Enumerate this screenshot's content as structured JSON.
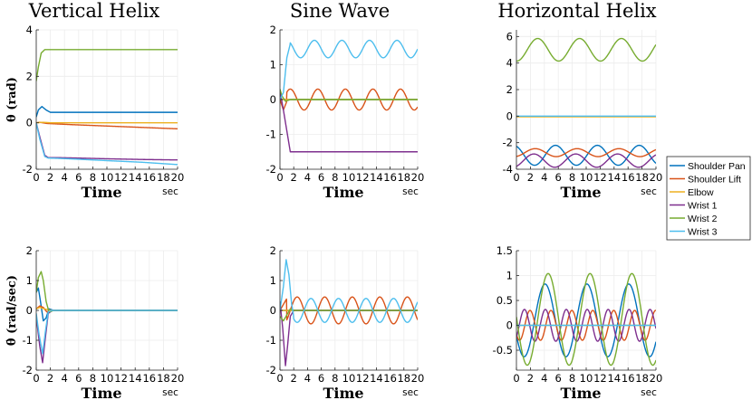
{
  "chart_data": {
    "type": "line",
    "legend": {
      "placement": "right",
      "entries": [
        "Shoulder Pan",
        "Shoulder Lift",
        "Elbow",
        "Wrist 1",
        "Wrist 2",
        "Wrist 3"
      ]
    },
    "colors": [
      "#0072BD",
      "#D95319",
      "#EDB120",
      "#7E2F8E",
      "#77AC30",
      "#4DBEEE"
    ],
    "xlabel": "Time",
    "xunit": "sec",
    "xlim": [
      0,
      20
    ],
    "xticks": [
      "0",
      "2",
      "4",
      "6",
      "8",
      "10",
      "12",
      "14",
      "16",
      "18",
      "20"
    ],
    "panels": [
      {
        "id": "vh-theta",
        "title": "Vertical Helix",
        "ylabel": "θ (rad)",
        "ylim": [
          -2,
          4
        ],
        "yticks": [
          "4",
          "2",
          "0",
          "-2"
        ],
        "ytick_vals": [
          4,
          2,
          0,
          -2
        ],
        "series": [
          {
            "name": "Shoulder Pan",
            "x": [
              0,
              0.3,
              0.8,
              1.4,
              2,
              4,
              10,
              20
            ],
            "y": [
              0.25,
              0.55,
              0.7,
              0.55,
              0.45,
              0.45,
              0.45,
              0.45
            ]
          },
          {
            "name": "Shoulder Lift",
            "x": [
              0,
              0.5,
              1.5,
              5,
              10,
              15,
              20
            ],
            "y": [
              0.0,
              0.02,
              -0.03,
              -0.08,
              -0.14,
              -0.2,
              -0.26
            ]
          },
          {
            "name": "Elbow",
            "x": [
              0,
              1,
              2,
              10,
              20
            ],
            "y": [
              0.0,
              0.02,
              0.0,
              0.0,
              0.0
            ]
          },
          {
            "name": "Wrist 1",
            "x": [
              0,
              0.5,
              1.2,
              1.7,
              3,
              6,
              10,
              15,
              20
            ],
            "y": [
              0.0,
              -0.6,
              -1.4,
              -1.5,
              -1.5,
              -1.52,
              -1.55,
              -1.58,
              -1.6
            ]
          },
          {
            "name": "Wrist 2",
            "x": [
              0,
              0.3,
              0.7,
              1.2,
              2,
              4,
              10,
              20
            ],
            "y": [
              1.8,
              2.4,
              3.0,
              3.15,
              3.15,
              3.15,
              3.15,
              3.15
            ]
          },
          {
            "name": "Wrist 3",
            "x": [
              0,
              0.5,
              1.2,
              1.7,
              3,
              6,
              10,
              15,
              20
            ],
            "y": [
              0.0,
              -0.7,
              -1.45,
              -1.52,
              -1.53,
              -1.57,
              -1.63,
              -1.7,
              -1.8
            ]
          }
        ]
      },
      {
        "id": "sw-theta",
        "title": "Sine Wave",
        "ylabel": "",
        "ylim": [
          -2,
          2
        ],
        "yticks": [
          "2",
          "1",
          "0",
          "-1",
          "-2"
        ],
        "ytick_vals": [
          2,
          1,
          0,
          -1,
          -2
        ],
        "series": [
          {
            "name": "Shoulder Pan",
            "x": [
              0,
              20
            ],
            "y": [
              0.0,
              0.0
            ]
          },
          {
            "name": "Shoulder Lift",
            "wave": {
              "base": 0.0,
              "amp": 0.3,
              "period": 4,
              "phase": 0.5,
              "start": 1.0
            },
            "x": [
              0,
              0.5,
              1.0
            ],
            "y": [
              0.0,
              -0.3,
              -0.05
            ]
          },
          {
            "name": "Elbow",
            "x": [
              0,
              20
            ],
            "y": [
              0.0,
              0.0
            ]
          },
          {
            "name": "Wrist 1",
            "x": [
              0,
              0.5,
              1.0,
              1.5,
              3,
              10,
              20
            ],
            "y": [
              0.25,
              -0.3,
              -0.9,
              -1.5,
              -1.5,
              -1.5,
              -1.5
            ]
          },
          {
            "name": "Wrist 2",
            "x": [
              0,
              0.3,
              0.8,
              1.5,
              20
            ],
            "y": [
              0.3,
              0.1,
              -0.05,
              0.0,
              0.0
            ]
          },
          {
            "name": "Wrist 3",
            "wave": {
              "base": 1.45,
              "amp": 0.25,
              "period": 4,
              "phase": 0.0,
              "start": 1.5
            },
            "x": [
              0,
              0.5,
              1.0,
              1.5
            ],
            "y": [
              0.0,
              0.2,
              1.2,
              1.6
            ]
          }
        ]
      },
      {
        "id": "hh-theta",
        "title": "Horizontal Helix",
        "ylabel": "",
        "ylim": [
          -4,
          6.5
        ],
        "yticks": [
          "6",
          "4",
          "2",
          "0",
          "-2",
          "-4"
        ],
        "ytick_vals": [
          6,
          4,
          2,
          0,
          -2,
          -4
        ],
        "series": [
          {
            "name": "Shoulder Pan",
            "wave": {
              "base": -2.95,
              "amp": 0.75,
              "period": 6,
              "phase": 4.1,
              "start": 0
            }
          },
          {
            "name": "Shoulder Lift",
            "wave": {
              "base": -2.75,
              "amp": 0.3,
              "period": 6,
              "phase": 1.2,
              "start": 0
            }
          },
          {
            "name": "Elbow",
            "x": [
              0,
              20
            ],
            "y": [
              -0.05,
              -0.05
            ]
          },
          {
            "name": "Wrist 1",
            "wave": {
              "base": -3.35,
              "amp": 0.5,
              "period": 6,
              "phase": 1.0,
              "start": 0
            }
          },
          {
            "name": "Wrist 2",
            "wave": {
              "base": 5.0,
              "amp": 0.85,
              "period": 6,
              "phase": 1.55,
              "start": 0
            }
          },
          {
            "name": "Wrist 3",
            "x": [
              0,
              20
            ],
            "y": [
              0.0,
              0.0
            ]
          }
        ]
      },
      {
        "id": "vh-dtheta",
        "title": "",
        "ylabel": "θ̇ (rad/sec)",
        "ylim": [
          -2,
          2
        ],
        "yticks": [
          "2",
          "1",
          "0",
          "-1",
          "-2"
        ],
        "ytick_vals": [
          2,
          1,
          0,
          -1,
          -2
        ],
        "series": [
          {
            "name": "Shoulder Pan",
            "x": [
              0,
              0.3,
              0.6,
              1.0,
              1.4,
              1.8,
              2.5,
              3,
              20
            ],
            "y": [
              0.6,
              0.75,
              0.3,
              -0.35,
              -0.25,
              0.05,
              0.0,
              0.0,
              0.0
            ]
          },
          {
            "name": "Shoulder Lift",
            "x": [
              0,
              0.5,
              1.0,
              1.5,
              2.5,
              20
            ],
            "y": [
              0.05,
              0.15,
              0.1,
              -0.05,
              0.0,
              0.0
            ]
          },
          {
            "name": "Elbow",
            "x": [
              0,
              0.5,
              1.2,
              2,
              20
            ],
            "y": [
              0.05,
              0.1,
              0.05,
              0.0,
              0.0
            ]
          },
          {
            "name": "Wrist 1",
            "x": [
              0,
              0.5,
              0.9,
              1.3,
              1.7,
              2.3,
              3,
              20
            ],
            "y": [
              -0.2,
              -1.2,
              -1.75,
              -0.9,
              -0.1,
              0.0,
              0.0,
              0.0
            ]
          },
          {
            "name": "Wrist 2",
            "x": [
              0,
              0.3,
              0.7,
              1.0,
              1.4,
              1.8,
              2.5,
              3,
              20
            ],
            "y": [
              0.6,
              1.1,
              1.3,
              1.0,
              0.3,
              -0.05,
              0.0,
              0.0,
              0.0
            ]
          },
          {
            "name": "Wrist 3",
            "x": [
              0,
              0.4,
              0.9,
              1.3,
              1.7,
              2.2,
              3,
              20
            ],
            "y": [
              -0.1,
              -0.8,
              -1.45,
              -0.7,
              -0.05,
              0.0,
              0.0,
              0.0
            ]
          }
        ]
      },
      {
        "id": "sw-dtheta",
        "title": "",
        "ylabel": "",
        "ylim": [
          -2,
          2
        ],
        "yticks": [
          "2",
          "1",
          "0",
          "-1",
          "-2"
        ],
        "ytick_vals": [
          2,
          1,
          0,
          -1,
          -2
        ],
        "series": [
          {
            "name": "Shoulder Pan",
            "x": [
              0,
              20
            ],
            "y": [
              0.0,
              0.0
            ]
          },
          {
            "name": "Shoulder Lift",
            "wave": {
              "base": 0.0,
              "amp": 0.45,
              "period": 4,
              "phase": 1.5,
              "start": 1.0
            },
            "x": [
              0,
              0.5,
              1.0
            ],
            "y": [
              0.0,
              0.2,
              0.4
            ]
          },
          {
            "name": "Elbow",
            "x": [
              0,
              20
            ],
            "y": [
              0.0,
              0.0
            ]
          },
          {
            "name": "Wrist 1",
            "x": [
              0,
              0.4,
              0.8,
              1.1,
              1.5,
              2.0,
              3,
              20
            ],
            "y": [
              0.3,
              -0.6,
              -1.85,
              -1.2,
              -0.2,
              0.0,
              0.0,
              0.0
            ]
          },
          {
            "name": "Wrist 2",
            "x": [
              0,
              0.5,
              1.0,
              1.5,
              2.0,
              20
            ],
            "y": [
              -0.2,
              -0.35,
              -0.15,
              0.05,
              0.0,
              0.0
            ]
          },
          {
            "name": "Wrist 3",
            "wave": {
              "base": 0.0,
              "amp": 0.4,
              "period": 4,
              "phase": 3.5,
              "start": 2.0
            },
            "x": [
              0,
              0.5,
              0.9,
              1.3,
              1.7,
              2.0
            ],
            "y": [
              0.0,
              0.8,
              1.7,
              1.2,
              0.2,
              -0.2
            ]
          }
        ]
      },
      {
        "id": "hh-dtheta",
        "title": "",
        "ylabel": "",
        "ylim": [
          -0.9,
          1.5
        ],
        "yticks": [
          "1.5",
          "1",
          "0.5",
          "0",
          "-0.5"
        ],
        "ytick_vals": [
          1.5,
          1,
          0.5,
          0,
          -0.5
        ],
        "series": [
          {
            "name": "Shoulder Pan",
            "wave": {
              "base": 0.1,
              "amp": 0.73,
              "period": 6,
              "phase": 2.6,
              "start": 0
            }
          },
          {
            "name": "Shoulder Lift",
            "wave": {
              "base": 0.0,
              "amp": 0.3,
              "period": 3,
              "phase": 1.2,
              "start": 0
            }
          },
          {
            "name": "Elbow",
            "x": [
              0,
              20
            ],
            "y": [
              0.0,
              0.0
            ]
          },
          {
            "name": "Wrist 1",
            "wave": {
              "base": 0.0,
              "amp": 0.32,
              "period": 3,
              "phase": 0.4,
              "start": 0
            }
          },
          {
            "name": "Wrist 2",
            "wave": {
              "base": 0.12,
              "amp": 0.92,
              "period": 6,
              "phase": 3.05,
              "start": 0
            }
          },
          {
            "name": "Wrist 3",
            "x": [
              0,
              20
            ],
            "y": [
              0.0,
              0.0
            ]
          }
        ]
      }
    ]
  }
}
